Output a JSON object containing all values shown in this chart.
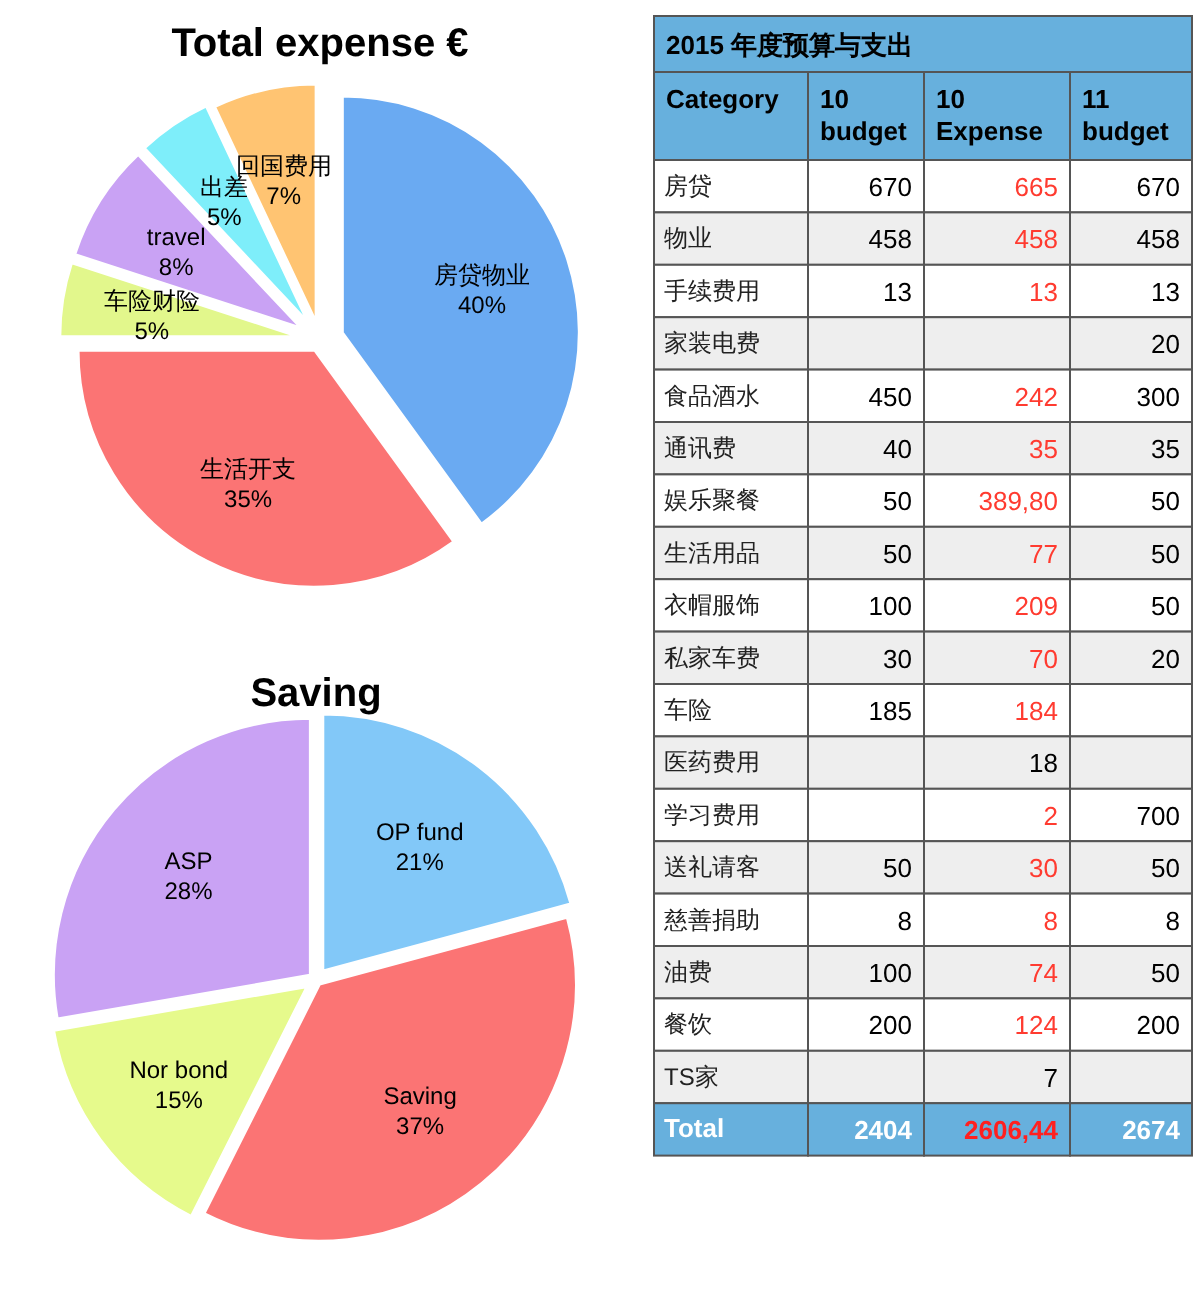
{
  "chart_data": [
    {
      "type": "pie",
      "title": "Total expense €",
      "categories": [
        "房贷物业",
        "生活开支",
        "车险财险",
        "travel",
        "出差",
        "回国费用"
      ],
      "values": [
        40,
        35,
        5,
        8,
        5,
        7
      ],
      "value_labels": [
        "40%",
        "35%",
        "5%",
        "8%",
        "5%",
        "7%"
      ],
      "colors": [
        "#6aaaf2",
        "#fb7474",
        "#e2f78c",
        "#c9a2f4",
        "#7eeefa",
        "#ffc472"
      ],
      "legend": false
    },
    {
      "type": "pie",
      "title": "Saving",
      "categories": [
        "OP fund",
        "Saving",
        "Nor bond",
        "ASP"
      ],
      "values": [
        21,
        37,
        15,
        28
      ],
      "value_labels": [
        "21%",
        "37%",
        "15%",
        "28%"
      ],
      "colors": [
        "#82c8f8",
        "#fb7474",
        "#e6fa8c",
        "#c9a2f4"
      ],
      "legend": false
    },
    {
      "type": "other",
      "title": "2015 年度预算与支出",
      "categories": [
        "Category",
        "10 budget",
        "10 Expense",
        "11 budget"
      ],
      "y_categories": [
        "房贷",
        "物业",
        "手续费用",
        "家装电费",
        "食品酒水",
        "通讯费",
        "娱乐聚餐",
        "生活用品",
        "衣帽服饰",
        "私家车费",
        "车险",
        "医药费用",
        "学习费用",
        "送礼请客",
        "慈善捐助",
        "油费",
        "餐饮",
        "TS家",
        "Total"
      ],
      "cell_labels": [
        [
          "670",
          "665",
          "670"
        ],
        [
          "458",
          "458",
          "458"
        ],
        [
          "13",
          "13",
          "13"
        ],
        [
          null,
          null,
          "20"
        ],
        [
          "450",
          "242",
          "300"
        ],
        [
          "40",
          "35",
          "35"
        ],
        [
          "50",
          "389,80",
          "50"
        ],
        [
          "50",
          "77",
          "50"
        ],
        [
          "100",
          "209",
          "50"
        ],
        [
          "30",
          "70",
          "20"
        ],
        [
          "185",
          "184",
          null
        ],
        [
          null,
          "18",
          null
        ],
        [
          null,
          "2",
          "700"
        ],
        [
          "50",
          "30",
          "50"
        ],
        [
          "8",
          "8",
          "8"
        ],
        [
          "100",
          "74",
          "50"
        ],
        [
          "200",
          "124",
          "200"
        ],
        [
          null,
          "7",
          null
        ],
        [
          "2404",
          "2606,44",
          "2674"
        ]
      ],
      "colors": [
        [
          "#000000",
          "#ff3b30",
          "#000000"
        ],
        [
          "#000000",
          "#ff3b30",
          "#000000"
        ],
        [
          "#000000",
          "#ff3b30",
          "#000000"
        ],
        [
          null,
          null,
          "#000000"
        ],
        [
          "#000000",
          "#ff3b30",
          "#000000"
        ],
        [
          "#000000",
          "#ff3b30",
          "#000000"
        ],
        [
          "#000000",
          "#ff3b30",
          "#000000"
        ],
        [
          "#000000",
          "#ff3b30",
          "#000000"
        ],
        [
          "#000000",
          "#ff3b30",
          "#000000"
        ],
        [
          "#000000",
          "#ff3b30",
          "#000000"
        ],
        [
          "#000000",
          "#ff3b30",
          null
        ],
        [
          null,
          "#000000",
          null
        ],
        [
          null,
          "#ff3b30",
          "#000000"
        ],
        [
          "#000000",
          "#ff3b30",
          "#000000"
        ],
        [
          "#000000",
          "#ff3b30",
          "#000000"
        ],
        [
          "#000000",
          "#ff3b30",
          "#000000"
        ],
        [
          "#000000",
          "#ff3b30",
          "#000000"
        ],
        [
          null,
          "#000000",
          null
        ],
        [
          "#ffffff",
          "#ff2020",
          "#ffffff"
        ]
      ]
    }
  ]
}
